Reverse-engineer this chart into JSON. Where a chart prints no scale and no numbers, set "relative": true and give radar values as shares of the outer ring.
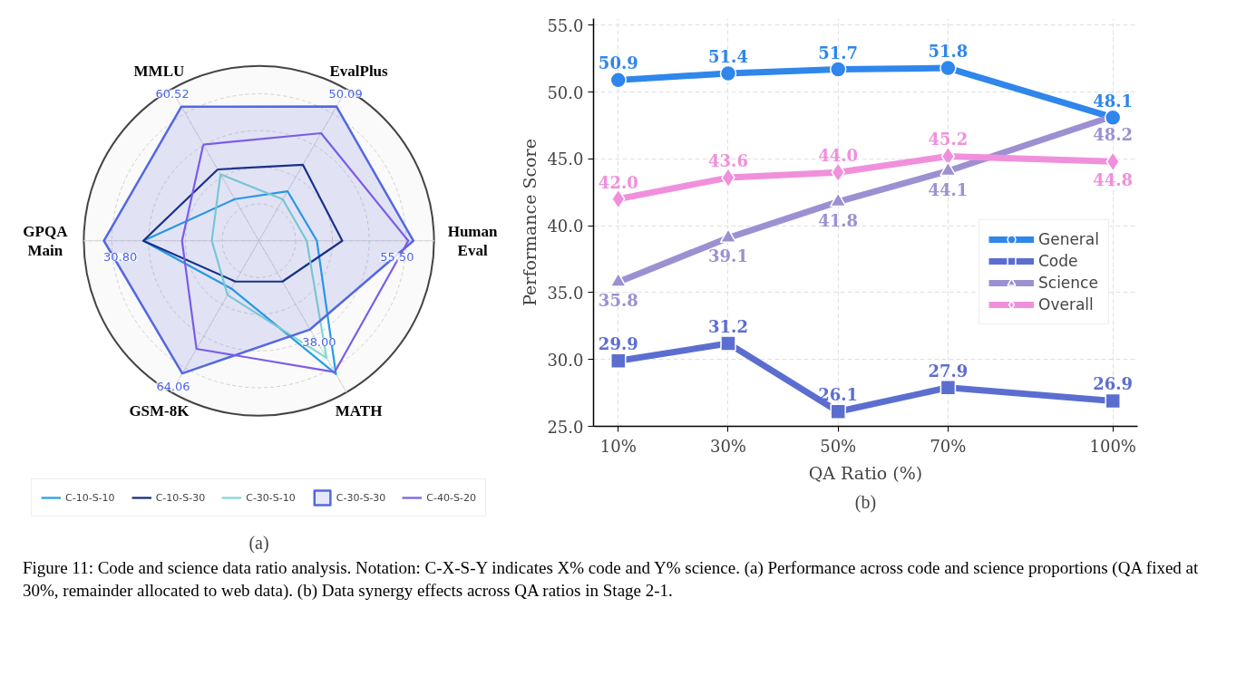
{
  "chart_data": [
    {
      "type": "radar",
      "relative": true,
      "subtitle": "(a)",
      "grid": true,
      "legend": "bottom",
      "categories": [
        "MMLU",
        "EvalPlus",
        "Human Eval",
        "MATH",
        "GSM-8K",
        "GPQA Main"
      ],
      "series": [
        {
          "name": "C-10-S-10",
          "color": "#1ea0e8",
          "values": [
            0.275,
            0.327,
            0.331,
            0.88,
            0.315,
            0.66
          ]
        },
        {
          "name": "C-10-S-30",
          "color": "#0d2a7a",
          "values": [
            0.471,
            0.502,
            0.476,
            0.269,
            0.269,
            0.66
          ]
        },
        {
          "name": "C-30-S-10",
          "color": "#7fd8d0",
          "values": [
            0.439,
            0.273,
            0.273,
            0.772,
            0.358,
            0.269
          ]
        },
        {
          "name": "C-30-S-30",
          "color": "#5468e0",
          "type": "area",
          "values": [
            0.885,
            0.886,
            0.882,
            0.585,
            0.875,
            0.885
          ]
        },
        {
          "name": "C-40-S-20",
          "color": "#7b5ce8",
          "values": [
            0.635,
            0.71,
            0.853,
            0.866,
            0.713,
            0.439
          ]
        }
      ],
      "annotations": [
        "60.52",
        "50.09",
        "55.50",
        "38.00",
        "64.06",
        "30.80"
      ]
    },
    {
      "type": "line",
      "subtitle": "(b)",
      "xlabel": "QA Ratio (%)",
      "ylabel": "Performance Score",
      "grid": true,
      "legend": "right",
      "data_labels": true,
      "x": [
        10,
        30,
        50,
        70,
        100
      ],
      "xlim": [
        5.5,
        104.5
      ],
      "xticks": [
        {
          "value": 10,
          "label": "10%"
        },
        {
          "value": 30,
          "label": "30%"
        },
        {
          "value": 50,
          "label": "50%"
        },
        {
          "value": 70,
          "label": "70%"
        },
        {
          "value": 100,
          "label": "100%"
        }
      ],
      "ylim": [
        25,
        55.5
      ],
      "yticks": [
        {
          "value": 25,
          "label": "25.0"
        },
        {
          "value": 30,
          "label": "30.0"
        },
        {
          "value": 35,
          "label": "35.0"
        },
        {
          "value": 40,
          "label": "40.0"
        },
        {
          "value": 45,
          "label": "45.0"
        },
        {
          "value": 50,
          "label": "50.0"
        },
        {
          "value": 55,
          "label": "55.0"
        }
      ],
      "series": [
        {
          "name": "General",
          "color": "#2f86eb",
          "marker": "circle",
          "values": [
            50.9,
            51.4,
            51.7,
            51.8,
            48.1
          ],
          "value_labels": [
            "50.9",
            "51.4",
            "51.7",
            "51.8",
            "48.1"
          ]
        },
        {
          "name": "Code",
          "color": "#5b6ed0",
          "marker": "square",
          "values": [
            29.9,
            31.2,
            26.1,
            27.9,
            26.9
          ],
          "value_labels": [
            "29.9",
            "31.2",
            "26.1",
            "27.9",
            "26.9"
          ]
        },
        {
          "name": "Science",
          "color": "#9d90d2",
          "marker": "triangle",
          "values": [
            35.8,
            39.1,
            41.8,
            44.1,
            48.2
          ],
          "value_labels": [
            "35.8",
            "39.1",
            "41.8",
            "44.1",
            "48.2"
          ]
        },
        {
          "name": "Overall",
          "color": "#f090dc",
          "marker": "diamond",
          "values": [
            42.0,
            43.6,
            44.0,
            45.2,
            44.8
          ],
          "value_labels": [
            "42.0",
            "43.6",
            "44.0",
            "45.2",
            "44.8"
          ]
        }
      ],
      "annotations": [
        "Figure 11: Code and science data ratio analysis. Notation: C-X-S-Y indicates X% code and Y% science. (a) Performance across code and science proportions (QA fixed at 30%, remainder allocated to web data). (b) Data synergy effects across QA ratios in Stage 2-1."
      ]
    }
  ]
}
